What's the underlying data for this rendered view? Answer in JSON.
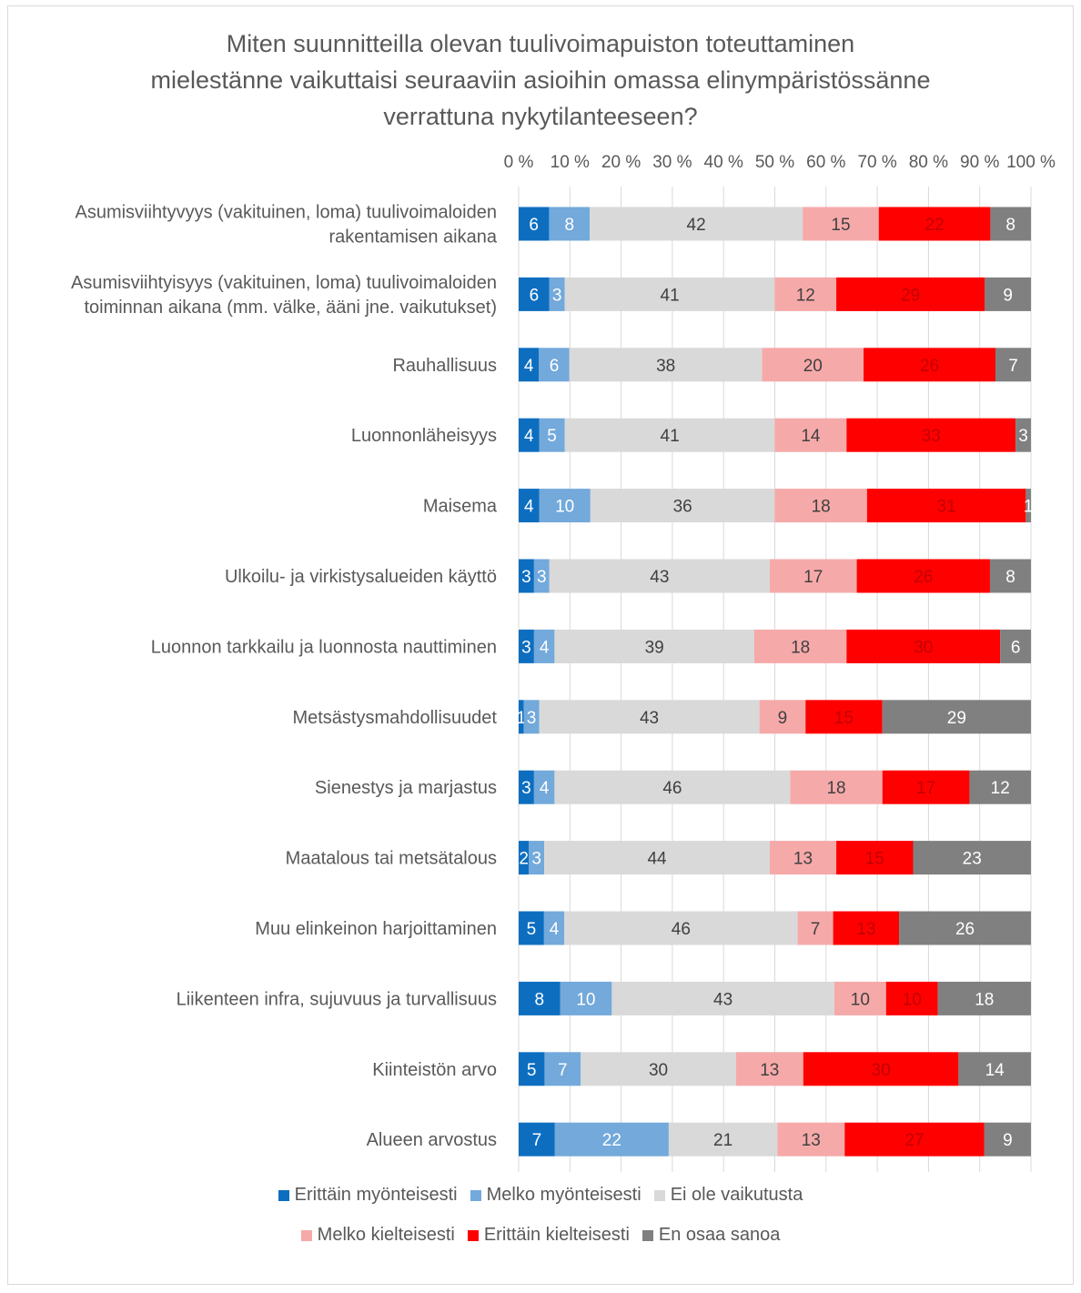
{
  "chart_data": {
    "type": "bar",
    "orientation": "horizontal",
    "stacked": "percent",
    "title": "Miten suunnitteilla olevan tuulivoimapuiston toteuttaminen mielestänne vaikuttaisi seuraaviin asioihin omassa elinympäristössänne verrattuna nykytilanteeseen?",
    "title_lines": [
      "Miten suunnitteilla olevan tuulivoimapuiston toteuttaminen",
      "mielestänne vaikuttaisi seuraaviin asioihin omassa elinympäristössänne",
      "verrattuna nykytilanteeseen?"
    ],
    "xlim": [
      0,
      100
    ],
    "x_ticks": [
      "0 %",
      "10 %",
      "20 %",
      "30 %",
      "40 %",
      "50 %",
      "60 %",
      "70 %",
      "80 %",
      "90 %",
      "100 %"
    ],
    "x_axis_position": "top",
    "grid": true,
    "legend_position": "bottom",
    "categories": [
      [
        "Asumisviihtyvyys (vakituinen, loma) tuulivoimaloiden",
        "rakentamisen aikana"
      ],
      [
        "Asumisviihtyisyys (vakituinen, loma) tuulivoimaloiden",
        "toiminnan aikana (mm. välke, ääni jne. vaikutukset)"
      ],
      [
        "Rauhallisuus"
      ],
      [
        "Luonnonläheisyys"
      ],
      [
        "Maisema"
      ],
      [
        "Ulkoilu- ja virkistysalueiden käyttö"
      ],
      [
        "Luonnon tarkkailu ja luonnosta nauttiminen"
      ],
      [
        "Metsästysmahdollisuudet"
      ],
      [
        "Sienestys ja marjastus"
      ],
      [
        "Maatalous tai metsätalous"
      ],
      [
        "Muu elinkeinon harjoittaminen"
      ],
      [
        "Liikenteen infra, sujuvuus ja turvallisuus"
      ],
      [
        "Kiinteistön arvo"
      ],
      [
        "Alueen arvostus"
      ]
    ],
    "series": [
      {
        "name": "Erittäin myönteisesti",
        "color": "#0d6ec0",
        "label_color": "#ffffff",
        "values": [
          6,
          6,
          4,
          4,
          4,
          3,
          3,
          1,
          3,
          2,
          5,
          8,
          5,
          7
        ]
      },
      {
        "name": "Melko myönteisesti",
        "color": "#73a9db",
        "label_color": "#ffffff",
        "values": [
          8,
          3,
          6,
          5,
          10,
          3,
          4,
          3,
          4,
          3,
          4,
          10,
          7,
          22
        ]
      },
      {
        "name": "Ei ole vaikutusta",
        "color": "#d9d9d9",
        "label_color": "#404040",
        "values": [
          42,
          41,
          38,
          41,
          36,
          43,
          39,
          43,
          46,
          44,
          46,
          43,
          30,
          21
        ]
      },
      {
        "name": "Melko kielteisesti",
        "color": "#f6a9a9",
        "label_color": "#404040",
        "values": [
          15,
          12,
          20,
          14,
          18,
          17,
          18,
          9,
          18,
          13,
          7,
          10,
          13,
          13
        ]
      },
      {
        "name": "Erittäin kielteisesti",
        "color": "#ff0000",
        "label_color": "#c00000",
        "values": [
          22,
          29,
          26,
          33,
          31,
          26,
          30,
          15,
          17,
          15,
          13,
          10,
          30,
          27
        ]
      },
      {
        "name": "En osaa sanoa",
        "color": "#808080",
        "label_color": "#ffffff",
        "values": [
          8,
          9,
          7,
          3,
          1,
          8,
          6,
          29,
          12,
          23,
          26,
          18,
          14,
          9
        ]
      }
    ]
  }
}
